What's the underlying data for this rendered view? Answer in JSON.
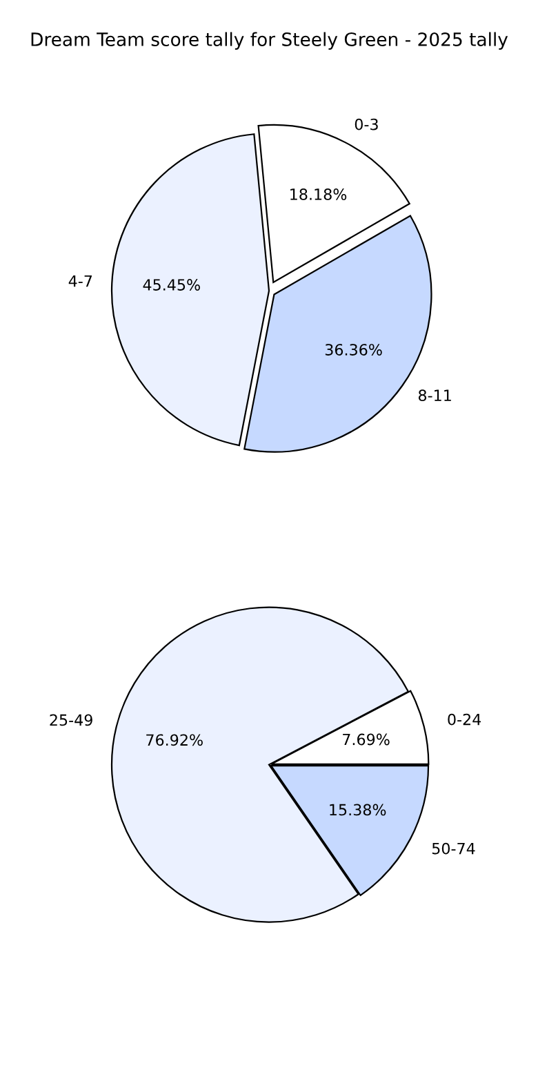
{
  "chart_data": [
    {
      "type": "pie",
      "title": "Dream Team score tally for Steely Green - 2025 tally",
      "categories": [
        "0-3",
        "4-7",
        "8-11"
      ],
      "values": [
        18.18,
        45.45,
        36.36
      ],
      "value_labels": [
        "18.18%",
        "45.45%",
        "36.36%"
      ],
      "colors": [
        "#ffffff",
        "#ebf1ff",
        "#c6d9ff"
      ]
    },
    {
      "type": "pie",
      "categories": [
        "0-24",
        "25-49",
        "50-74"
      ],
      "values": [
        7.69,
        76.92,
        15.38
      ],
      "value_labels": [
        "7.69%",
        "76.92%",
        "15.38%"
      ],
      "colors": [
        "#ffffff",
        "#ebf1ff",
        "#c6d9ff"
      ]
    }
  ]
}
